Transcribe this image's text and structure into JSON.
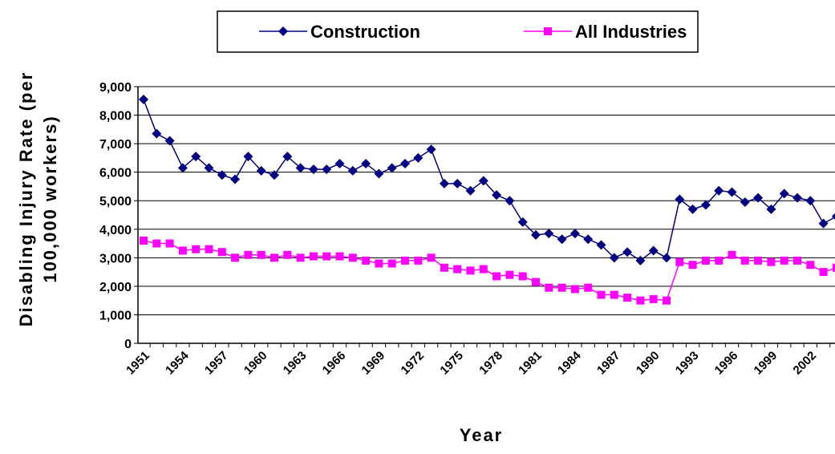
{
  "chart_data": {
    "type": "line",
    "ylabel": [
      "Disabling Injury Rate (per",
      "100,000 workers)"
    ],
    "xlabel": "Year",
    "categories": [
      "1951",
      null,
      null,
      "1954",
      null,
      null,
      "1957",
      null,
      null,
      "1960",
      null,
      null,
      "1963",
      null,
      null,
      "1966",
      null,
      null,
      "1969",
      null,
      null,
      "1972",
      null,
      null,
      "1975",
      null,
      null,
      "1978",
      null,
      null,
      "1981",
      null,
      null,
      "1984",
      null,
      null,
      "1987",
      null,
      null,
      "1990",
      null,
      null,
      "1993",
      null,
      null,
      "1996",
      null,
      null,
      "1999",
      null,
      null,
      "2002",
      null,
      null
    ],
    "series": [
      {
        "name": "Construction",
        "color": "#000080",
        "marker": "diamond",
        "values": [
          8550,
          7350,
          7100,
          6150,
          6550,
          6150,
          5900,
          5750,
          6550,
          6050,
          5900,
          6550,
          6150,
          6100,
          6100,
          6300,
          6050,
          6300,
          5950,
          6150,
          6300,
          6500,
          6800,
          5600,
          5600,
          5350,
          5700,
          5200,
          5000,
          4250,
          3800,
          3850,
          3650,
          3850,
          3650,
          3450,
          3000,
          3200,
          2900,
          3250,
          3000,
          5050,
          4700,
          4850,
          5350,
          5300,
          4950,
          5100,
          4700,
          5250,
          5100,
          5000,
          4200,
          4450
        ]
      },
      {
        "name": "All Industries",
        "color": "#ff00ff",
        "marker": "square",
        "values": [
          3600,
          3500,
          3500,
          3250,
          3300,
          3300,
          3200,
          3000,
          3100,
          3100,
          3000,
          3100,
          3000,
          3050,
          3050,
          3050,
          3000,
          2900,
          2800,
          2800,
          2900,
          2900,
          3000,
          2650,
          2600,
          2550,
          2600,
          2350,
          2400,
          2350,
          2150,
          1950,
          1950,
          1900,
          1950,
          1700,
          1700,
          1600,
          1500,
          1550,
          1500,
          2850,
          2750,
          2900,
          2900,
          3100,
          2900,
          2900,
          2850,
          2900,
          2900,
          2750,
          2500,
          2650
        ]
      }
    ],
    "ylim": [
      0,
      9000
    ],
    "yticks": [
      0,
      {
        "value": 1000,
        "label": "1,000"
      },
      {
        "value": 2000,
        "label": "2,000"
      },
      {
        "value": 3000,
        "label": "3,000"
      },
      {
        "value": 4000,
        "label": "4,000"
      },
      {
        "value": 5000,
        "label": "5,000"
      },
      {
        "value": 6000,
        "label": "6,000"
      },
      {
        "value": 7000,
        "label": "7,000"
      },
      {
        "value": 8000,
        "label": "8,000"
      },
      {
        "value": 9000,
        "label": "9,000"
      }
    ],
    "grid": true,
    "legend": "top"
  }
}
